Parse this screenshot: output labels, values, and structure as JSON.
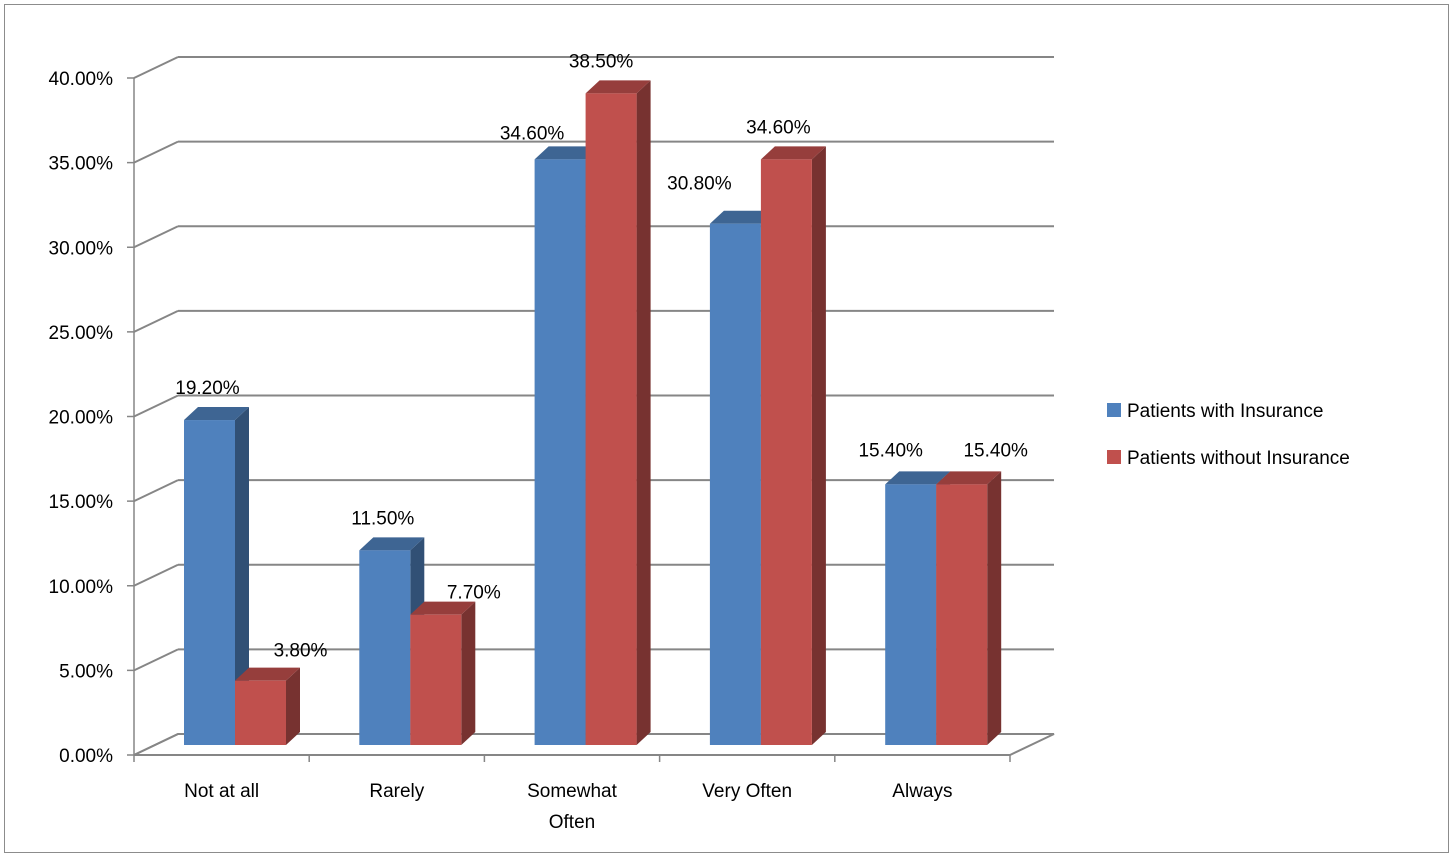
{
  "chart_data": {
    "type": "bar",
    "style": "3d-clustered-column",
    "categories": [
      [
        "Not at all"
      ],
      [
        "Rarely"
      ],
      [
        "Somewhat",
        "Often"
      ],
      [
        "Very Often"
      ],
      [
        "Always"
      ]
    ],
    "series": [
      {
        "name": "Patients with Insurance",
        "color": "#4f81bd",
        "values": [
          19.2,
          11.5,
          34.6,
          30.8,
          15.4
        ],
        "labels": [
          "19.20%",
          "11.50%",
          "34.60%",
          "30.80%",
          "15.40%"
        ]
      },
      {
        "name": "Patients without Insurance",
        "color": "#c0504d",
        "values": [
          3.8,
          7.7,
          38.5,
          34.6,
          15.4
        ],
        "labels": [
          "3.80%",
          "7.70%",
          "38.50%",
          "34.60%",
          "15.40%"
        ]
      }
    ],
    "yticks": [
      "0.00%",
      "5.00%",
      "10.00%",
      "15.00%",
      "20.00%",
      "25.00%",
      "30.00%",
      "35.00%",
      "40.00%"
    ],
    "ylim": [
      0,
      40
    ],
    "grid": true,
    "legend_position": "right"
  }
}
